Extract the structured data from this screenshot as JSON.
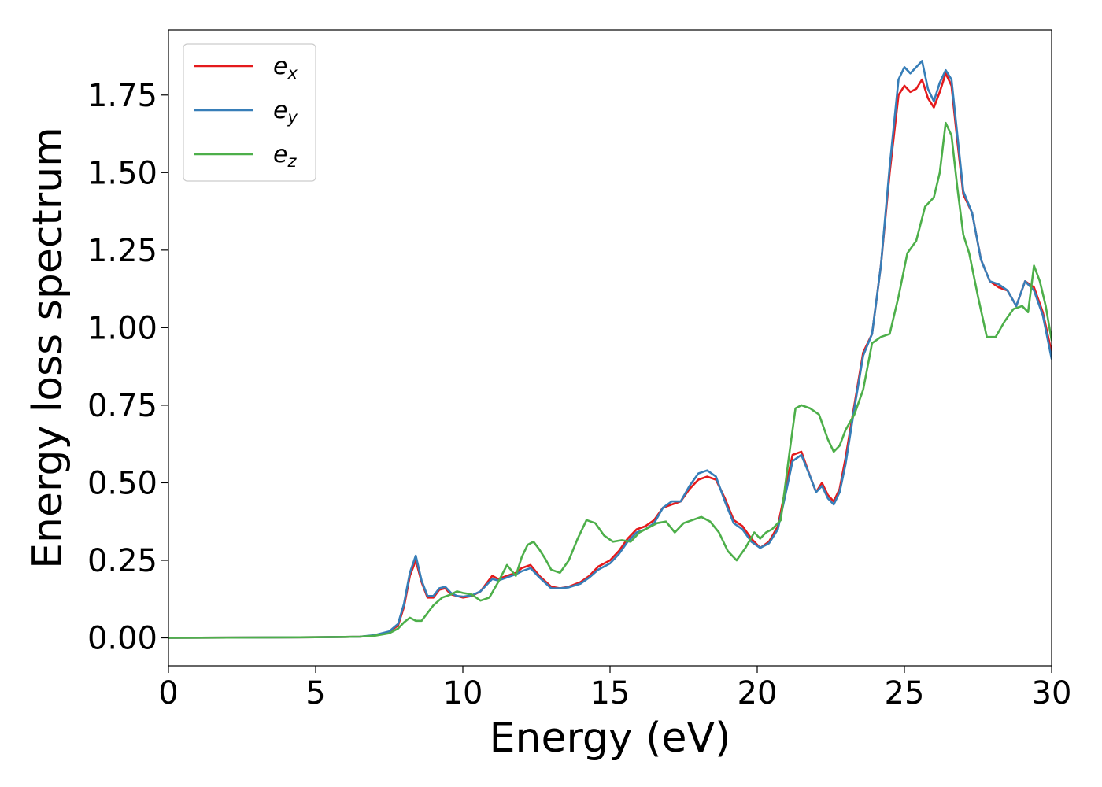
{
  "chart_data": {
    "type": "line",
    "title": "",
    "xlabel": "Energy (eV)",
    "ylabel": "Energy loss spectrum",
    "xlim": [
      0,
      30
    ],
    "ylim": [
      -0.09,
      1.96
    ],
    "xticks": [
      0,
      5,
      10,
      15,
      20,
      25,
      30
    ],
    "xtick_labels": [
      "0",
      "5",
      "10",
      "15",
      "20",
      "25",
      "30"
    ],
    "yticks": [
      0,
      0.25,
      0.5,
      0.75,
      1.0,
      1.25,
      1.5,
      1.75
    ],
    "ytick_labels": [
      "0.00",
      "0.25",
      "0.50",
      "0.75",
      "1.00",
      "1.25",
      "1.50",
      "1.75"
    ],
    "grid": false,
    "legend_position": "top-left",
    "series": [
      {
        "name": "e",
        "name_sub": "x",
        "color": "#e41a1c",
        "x": [
          0,
          3,
          5,
          6,
          6.5,
          7,
          7.5,
          7.8,
          8.0,
          8.2,
          8.4,
          8.6,
          8.8,
          9.0,
          9.2,
          9.4,
          9.6,
          9.8,
          10.0,
          10.3,
          10.6,
          10.8,
          11.0,
          11.2,
          11.5,
          11.8,
          12.0,
          12.3,
          12.6,
          13.0,
          13.3,
          13.6,
          14.0,
          14.3,
          14.6,
          15.0,
          15.3,
          15.6,
          15.9,
          16.2,
          16.5,
          16.8,
          17.1,
          17.4,
          17.7,
          18.0,
          18.3,
          18.6,
          18.9,
          19.2,
          19.5,
          19.8,
          20.1,
          20.4,
          20.7,
          21.0,
          21.2,
          21.5,
          21.8,
          22.0,
          22.2,
          22.4,
          22.6,
          22.8,
          23.0,
          23.3,
          23.6,
          23.9,
          24.2,
          24.5,
          24.8,
          25.0,
          25.2,
          25.4,
          25.6,
          25.8,
          26.0,
          26.2,
          26.4,
          26.6,
          26.8,
          27.0,
          27.3,
          27.6,
          27.9,
          28.2,
          28.5,
          28.8,
          29.1,
          29.4,
          29.7,
          30.0
        ],
        "y": [
          0,
          0.001,
          0.002,
          0.003,
          0.004,
          0.008,
          0.02,
          0.04,
          0.1,
          0.2,
          0.25,
          0.18,
          0.13,
          0.13,
          0.155,
          0.16,
          0.14,
          0.135,
          0.13,
          0.135,
          0.15,
          0.175,
          0.2,
          0.19,
          0.2,
          0.21,
          0.225,
          0.235,
          0.2,
          0.165,
          0.16,
          0.165,
          0.18,
          0.2,
          0.23,
          0.25,
          0.28,
          0.32,
          0.35,
          0.36,
          0.38,
          0.42,
          0.43,
          0.44,
          0.48,
          0.51,
          0.52,
          0.51,
          0.45,
          0.38,
          0.36,
          0.32,
          0.29,
          0.31,
          0.36,
          0.5,
          0.59,
          0.6,
          0.52,
          0.47,
          0.5,
          0.46,
          0.44,
          0.48,
          0.58,
          0.75,
          0.92,
          0.98,
          1.2,
          1.5,
          1.75,
          1.78,
          1.76,
          1.77,
          1.8,
          1.74,
          1.71,
          1.76,
          1.82,
          1.78,
          1.6,
          1.43,
          1.37,
          1.22,
          1.15,
          1.13,
          1.12,
          1.07,
          1.15,
          1.13,
          1.05,
          0.92
        ]
      },
      {
        "name": "e",
        "name_sub": "y",
        "color": "#377eb8",
        "x": [
          0,
          3,
          5,
          6,
          6.5,
          7,
          7.5,
          7.8,
          8.0,
          8.2,
          8.4,
          8.6,
          8.8,
          9.0,
          9.2,
          9.4,
          9.6,
          9.8,
          10.0,
          10.3,
          10.6,
          10.8,
          11.0,
          11.2,
          11.5,
          11.8,
          12.0,
          12.3,
          12.6,
          13.0,
          13.3,
          13.6,
          14.0,
          14.3,
          14.6,
          15.0,
          15.3,
          15.6,
          15.9,
          16.2,
          16.5,
          16.8,
          17.1,
          17.4,
          17.7,
          18.0,
          18.3,
          18.6,
          18.9,
          19.2,
          19.5,
          19.8,
          20.1,
          20.4,
          20.7,
          21.0,
          21.2,
          21.5,
          21.8,
          22.0,
          22.2,
          22.4,
          22.6,
          22.8,
          23.0,
          23.3,
          23.6,
          23.9,
          24.2,
          24.5,
          24.8,
          25.0,
          25.2,
          25.4,
          25.6,
          25.8,
          26.0,
          26.2,
          26.4,
          26.6,
          26.8,
          27.0,
          27.3,
          27.6,
          27.9,
          28.2,
          28.5,
          28.8,
          29.1,
          29.4,
          29.7,
          30.0
        ],
        "y": [
          0,
          0.001,
          0.002,
          0.003,
          0.004,
          0.009,
          0.021,
          0.045,
          0.11,
          0.21,
          0.265,
          0.185,
          0.135,
          0.135,
          0.16,
          0.165,
          0.145,
          0.135,
          0.133,
          0.137,
          0.15,
          0.17,
          0.19,
          0.185,
          0.195,
          0.205,
          0.215,
          0.225,
          0.195,
          0.16,
          0.16,
          0.163,
          0.175,
          0.195,
          0.22,
          0.24,
          0.27,
          0.31,
          0.34,
          0.35,
          0.37,
          0.42,
          0.44,
          0.44,
          0.49,
          0.53,
          0.54,
          0.52,
          0.44,
          0.37,
          0.35,
          0.31,
          0.29,
          0.305,
          0.35,
          0.48,
          0.57,
          0.59,
          0.52,
          0.47,
          0.49,
          0.45,
          0.43,
          0.47,
          0.56,
          0.74,
          0.91,
          0.98,
          1.2,
          1.52,
          1.8,
          1.84,
          1.82,
          1.84,
          1.86,
          1.77,
          1.73,
          1.79,
          1.83,
          1.8,
          1.62,
          1.44,
          1.37,
          1.22,
          1.15,
          1.14,
          1.12,
          1.07,
          1.15,
          1.12,
          1.04,
          0.9
        ]
      },
      {
        "name": "e",
        "name_sub": "z",
        "color": "#4daf4a",
        "x": [
          0,
          3,
          5,
          6,
          6.5,
          7,
          7.5,
          7.8,
          8.0,
          8.2,
          8.4,
          8.6,
          8.8,
          9.0,
          9.3,
          9.6,
          9.8,
          10.0,
          10.3,
          10.6,
          10.9,
          11.2,
          11.5,
          11.8,
          12.0,
          12.2,
          12.4,
          12.6,
          12.8,
          13.0,
          13.3,
          13.6,
          13.9,
          14.2,
          14.5,
          14.8,
          15.1,
          15.4,
          15.7,
          16.0,
          16.3,
          16.6,
          16.9,
          17.2,
          17.5,
          17.8,
          18.1,
          18.4,
          18.7,
          19.0,
          19.3,
          19.6,
          19.9,
          20.1,
          20.3,
          20.5,
          20.8,
          21.1,
          21.3,
          21.5,
          21.8,
          22.1,
          22.4,
          22.6,
          22.8,
          23.0,
          23.3,
          23.6,
          23.9,
          24.2,
          24.5,
          24.8,
          25.1,
          25.4,
          25.7,
          26.0,
          26.2,
          26.4,
          26.6,
          26.8,
          27.0,
          27.2,
          27.5,
          27.8,
          28.1,
          28.4,
          28.7,
          29.0,
          29.2,
          29.4,
          29.6,
          29.8,
          30.0
        ],
        "y": [
          0,
          0.001,
          0.002,
          0.003,
          0.004,
          0.007,
          0.015,
          0.03,
          0.05,
          0.065,
          0.055,
          0.055,
          0.08,
          0.105,
          0.13,
          0.14,
          0.15,
          0.145,
          0.14,
          0.12,
          0.13,
          0.18,
          0.235,
          0.2,
          0.26,
          0.3,
          0.31,
          0.285,
          0.255,
          0.22,
          0.21,
          0.25,
          0.32,
          0.38,
          0.37,
          0.33,
          0.31,
          0.315,
          0.31,
          0.34,
          0.355,
          0.37,
          0.375,
          0.34,
          0.37,
          0.38,
          0.39,
          0.375,
          0.34,
          0.28,
          0.25,
          0.29,
          0.34,
          0.32,
          0.34,
          0.35,
          0.38,
          0.6,
          0.74,
          0.75,
          0.74,
          0.72,
          0.64,
          0.6,
          0.62,
          0.67,
          0.72,
          0.8,
          0.95,
          0.97,
          0.98,
          1.1,
          1.24,
          1.28,
          1.39,
          1.42,
          1.5,
          1.66,
          1.62,
          1.45,
          1.3,
          1.24,
          1.1,
          0.97,
          0.97,
          1.02,
          1.06,
          1.07,
          1.05,
          1.2,
          1.15,
          1.07,
          0.96
        ]
      }
    ]
  }
}
